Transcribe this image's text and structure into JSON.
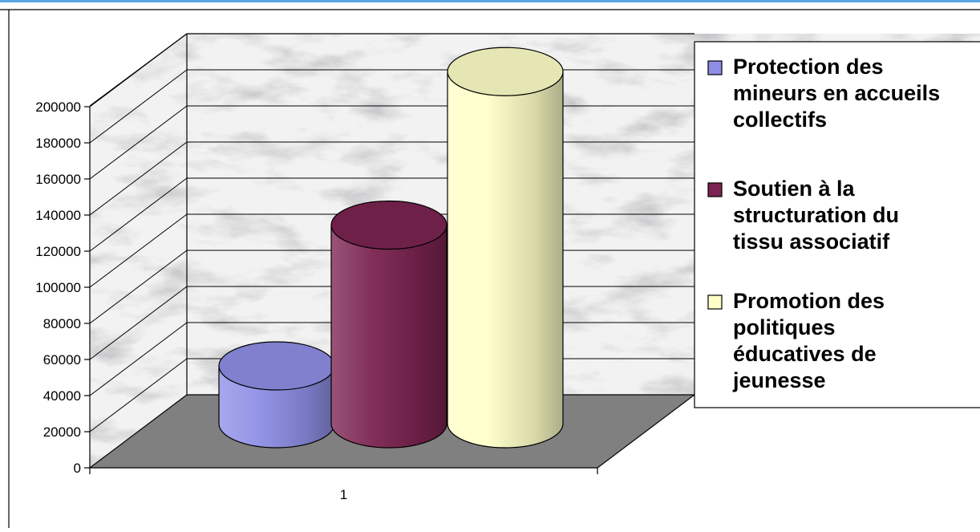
{
  "chart_data": {
    "type": "bar",
    "style": "3d-cylinder",
    "categories": [
      "1"
    ],
    "series": [
      {
        "name": "Protection des mineurs en accueils collectifs",
        "values": [
          32000
        ],
        "color": "#8e8ee6",
        "legend_lines": [
          "Protection des",
          "mineurs en accueils",
          "collectifs"
        ]
      },
      {
        "name": "Soutien à la structuration du tissu associatif",
        "values": [
          110000
        ],
        "color": "#7b2451",
        "legend_lines": [
          "Soutien à la",
          "structuration du",
          "tissu associatif"
        ]
      },
      {
        "name": "Promotion des politiques éducatives de jeunesse",
        "values": [
          195000
        ],
        "color": "#ffffc8",
        "legend_lines": [
          "Promotion des",
          "politiques",
          "éducatives de",
          "jeunesse"
        ]
      }
    ],
    "yticks": [
      "0",
      "20000",
      "40000",
      "60000",
      "80000",
      "100000",
      "120000",
      "140000",
      "160000",
      "180000",
      "200000"
    ],
    "ylim": [
      0,
      240000
    ],
    "grid": true,
    "legend": "right",
    "title": "",
    "xlabel": "",
    "ylabel": ""
  }
}
